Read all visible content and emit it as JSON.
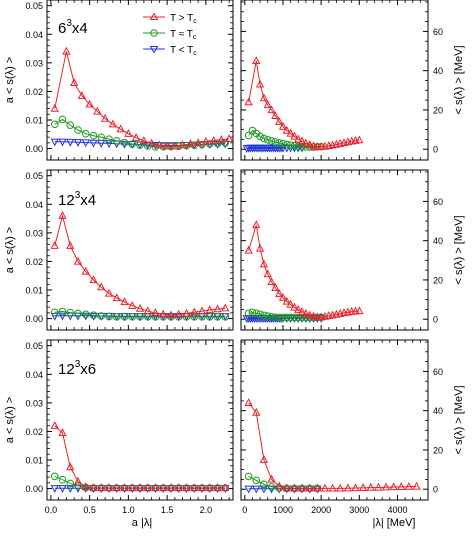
{
  "colors": {
    "above": "#e8222b",
    "near": "#1f9a1f",
    "below": "#2033d8",
    "frame": "#000000"
  },
  "legend": {
    "above": "T > T",
    "near": "T ≈ T",
    "below": "T < T",
    "sub": "c",
    "placement": "top-right of top-left panel"
  },
  "x_axis_left": {
    "label": "a |λ|",
    "ticks": [
      "0.0",
      "0.5",
      "1.0",
      "1.5",
      "2.0"
    ]
  },
  "x_axis_right": {
    "label": "|λ|  [MeV]",
    "ticks": [
      "0",
      "1000",
      "2000",
      "3000",
      "4000"
    ]
  },
  "y_axis_left": {
    "label": "a < s(λ) >",
    "ticks": [
      "0.00",
      "0.01",
      "0.02",
      "0.03",
      "0.04",
      "0.05"
    ]
  },
  "y_axis_right": {
    "label": "< s(λ) >  [MeV]",
    "ticks": [
      "0",
      "20",
      "40",
      "60"
    ]
  },
  "chart_data": [
    {
      "type": "line",
      "lattice_base": "6",
      "lattice_exp": "3",
      "lattice_rest": "x4",
      "xlabel": "a |λ|",
      "ylabel": "a < s(λ) >",
      "xlim": [
        -0.05,
        2.35
      ],
      "ylim": [
        -0.004,
        0.052
      ],
      "grid": false,
      "series": [
        {
          "name": "T > Tc",
          "marker": "triangle-up",
          "x": [
            0.05,
            0.2,
            0.3,
            0.4,
            0.5,
            0.6,
            0.7,
            0.8,
            0.9,
            1.0,
            1.1,
            1.2,
            1.3,
            1.4,
            1.5,
            1.6,
            1.7,
            1.8,
            1.9,
            2.0,
            2.1,
            2.2,
            2.3
          ],
          "y": [
            0.014,
            0.034,
            0.023,
            0.0185,
            0.0155,
            0.013,
            0.0105,
            0.0085,
            0.0068,
            0.0052,
            0.0038,
            0.0027,
            0.0018,
            0.0012,
            0.0008,
            0.0008,
            0.0012,
            0.0016,
            0.002,
            0.0024,
            0.0028,
            0.0031,
            0.0034
          ]
        },
        {
          "name": "T ≈ Tc",
          "marker": "circle",
          "x": [
            0.05,
            0.15,
            0.25,
            0.35,
            0.45,
            0.55,
            0.65,
            0.75,
            0.85,
            0.95,
            1.05,
            1.15,
            1.25,
            1.35,
            1.45,
            1.55,
            1.65,
            1.75,
            1.85,
            1.95,
            2.05,
            2.15,
            2.25
          ],
          "y": [
            0.0085,
            0.0102,
            0.0082,
            0.0065,
            0.0052,
            0.0045,
            0.004,
            0.0033,
            0.0027,
            0.0021,
            0.0016,
            0.0012,
            0.0009,
            0.0006,
            0.0006,
            0.0007,
            0.0008,
            0.001,
            0.0012,
            0.0014,
            0.0016,
            0.0018,
            0.002
          ]
        },
        {
          "name": "T < Tc",
          "marker": "triangle-down",
          "x": [
            0.05,
            0.15,
            0.25,
            0.35,
            0.45,
            0.55,
            0.65,
            0.75,
            0.85,
            0.95,
            1.05,
            1.15,
            1.25,
            1.35,
            1.45,
            1.55,
            1.65,
            1.75,
            1.85,
            1.95,
            2.05,
            2.15,
            2.25
          ],
          "y": [
            0.0024,
            0.0024,
            0.0023,
            0.0022,
            0.0021,
            0.002,
            0.0019,
            0.0018,
            0.0017,
            0.0016,
            0.0015,
            0.0014,
            0.0013,
            0.0012,
            0.0011,
            0.0011,
            0.0011,
            0.0012,
            0.0013,
            0.0014,
            0.0015,
            0.0016,
            0.0017
          ]
        }
      ]
    },
    {
      "type": "line",
      "xlabel": "|λ|  [MeV]",
      "ylabel": "< s(λ) >  [MeV]",
      "xlim": [
        -100,
        4800
      ],
      "ylim": [
        -5.5,
        76
      ],
      "grid": false,
      "series": [
        {
          "name": "T > Tc",
          "marker": "triangle-up",
          "x": [
            100,
            300,
            400,
            500,
            600,
            700,
            800,
            900,
            1000,
            1100,
            1200,
            1300,
            1400,
            1500,
            1600,
            1700,
            1800,
            1900,
            2000,
            2100,
            2200,
            2300,
            2400,
            2500,
            2600,
            2700,
            2800,
            2900,
            3000
          ],
          "y": [
            24,
            45,
            33,
            26,
            22.5,
            20,
            17,
            14,
            11.5,
            9.5,
            8,
            6.5,
            5,
            4,
            3,
            2.2,
            1.6,
            1.2,
            1.2,
            1.4,
            1.7,
            2,
            2.4,
            2.8,
            3.2,
            3.6,
            4,
            4.3,
            4.6
          ]
        },
        {
          "name": "T ≈ Tc",
          "marker": "circle",
          "x": [
            100,
            200,
            300,
            400,
            500,
            600,
            700,
            800,
            900,
            1000,
            1100,
            1200,
            1300,
            1400,
            1500,
            1600,
            1700,
            1800,
            1900,
            2000
          ],
          "y": [
            7,
            9.5,
            8,
            6.5,
            5.5,
            4.8,
            4.2,
            3.7,
            3.2,
            2.8,
            2.4,
            2.1,
            1.8,
            1.5,
            1.3,
            1.2,
            1.1,
            1.1,
            1.2,
            1.3
          ]
        },
        {
          "name": "T < Tc",
          "marker": "triangle-down",
          "x": [
            50,
            100,
            150,
            200,
            250,
            300,
            350,
            400,
            450,
            500,
            550,
            600,
            650,
            700,
            750,
            800,
            850,
            900,
            950,
            1000,
            1100,
            1200,
            1300,
            1400,
            1500
          ],
          "y": [
            0.5,
            0.6,
            0.7,
            0.7,
            0.7,
            0.7,
            0.7,
            0.7,
            0.7,
            0.7,
            0.7,
            0.7,
            0.7,
            0.7,
            0.7,
            0.7,
            0.7,
            0.7,
            0.7,
            0.7,
            0.7,
            0.7,
            0.7,
            0.7,
            0.7
          ]
        }
      ]
    },
    {
      "type": "line",
      "lattice_base": "12",
      "lattice_exp": "3",
      "lattice_rest": "x4",
      "xlabel": "a |λ|",
      "ylabel": "a < s(λ) >",
      "xlim": [
        -0.05,
        2.35
      ],
      "ylim": [
        -0.004,
        0.052
      ],
      "grid": false,
      "series": [
        {
          "name": "T > Tc",
          "marker": "triangle-up",
          "x": [
            0.05,
            0.15,
            0.25,
            0.35,
            0.45,
            0.55,
            0.65,
            0.75,
            0.85,
            0.95,
            1.05,
            1.15,
            1.25,
            1.35,
            1.45,
            1.55,
            1.65,
            1.75,
            1.85,
            1.95,
            2.05,
            2.15,
            2.25
          ],
          "y": [
            0.0255,
            0.036,
            0.0255,
            0.02,
            0.0165,
            0.0135,
            0.011,
            0.0088,
            0.0072,
            0.0058,
            0.0045,
            0.0035,
            0.0026,
            0.002,
            0.0015,
            0.0012,
            0.0014,
            0.0018,
            0.0022,
            0.0026,
            0.003,
            0.0033,
            0.0036
          ]
        },
        {
          "name": "T ≈ Tc",
          "marker": "circle",
          "x": [
            0.05,
            0.15,
            0.25,
            0.35,
            0.45,
            0.55,
            0.65,
            0.75,
            0.85,
            0.95,
            1.05,
            1.15,
            1.25,
            1.35,
            1.45,
            1.55,
            1.65,
            1.75,
            1.85,
            1.95,
            2.05,
            2.15,
            2.25
          ],
          "y": [
            0.0022,
            0.0025,
            0.0021,
            0.0018,
            0.0015,
            0.0012,
            0.0009,
            0.0007,
            0.0006,
            0.0006,
            0.0006,
            0.0006,
            0.0006,
            0.0006,
            0.0006,
            0.0006,
            0.0006,
            0.0006,
            0.0006,
            0.0006,
            0.0006,
            0.0006,
            0.0006
          ]
        },
        {
          "name": "T < Tc",
          "marker": "triangle-down",
          "x": [
            0.05,
            0.15,
            0.25,
            0.35,
            0.45,
            0.55,
            0.65,
            0.75,
            0.85,
            0.95,
            1.05,
            1.15,
            1.25,
            1.35,
            1.45,
            1.55,
            1.65,
            1.75,
            1.85,
            1.95,
            2.05,
            2.15,
            2.25
          ],
          "y": [
            0.0009,
            0.001,
            0.001,
            0.001,
            0.001,
            0.0009,
            0.0009,
            0.0009,
            0.0008,
            0.0008,
            0.0008,
            0.0008,
            0.0008,
            0.0008,
            0.0008,
            0.0008,
            0.0008,
            0.0008,
            0.0008,
            0.0008,
            0.0008,
            0.0008,
            0.0008
          ]
        }
      ]
    },
    {
      "type": "line",
      "xlabel": "|λ|  [MeV]",
      "ylabel": "< s(λ) >  [MeV]",
      "xlim": [
        -100,
        4800
      ],
      "ylim": [
        -5.5,
        76
      ],
      "grid": false,
      "series": [
        {
          "name": "T > Tc",
          "marker": "triangle-up",
          "x": [
            100,
            300,
            400,
            500,
            600,
            700,
            800,
            900,
            1000,
            1100,
            1200,
            1300,
            1400,
            1500,
            1600,
            1700,
            1800,
            1900,
            2000,
            2100,
            2200,
            2300,
            2400,
            2500,
            2600,
            2700,
            2800,
            2900,
            3000
          ],
          "y": [
            35,
            48,
            36,
            28,
            23,
            19,
            16,
            13,
            11,
            9,
            7.5,
            6,
            4.8,
            3.8,
            2.8,
            2,
            1.4,
            1,
            1,
            1.3,
            1.7,
            2,
            2.4,
            2.8,
            3.2,
            3.5,
            3.8,
            4,
            4.2
          ]
        },
        {
          "name": "T ≈ Tc",
          "marker": "circle",
          "x": [
            100,
            200,
            300,
            400,
            500,
            600,
            700,
            800,
            900,
            1000,
            1100,
            1200,
            1300,
            1400,
            1500,
            1600,
            1700,
            1800,
            1900,
            2000
          ],
          "y": [
            3,
            3.5,
            3,
            2.5,
            2,
            1.6,
            1.2,
            1,
            0.9,
            0.9,
            0.9,
            0.9,
            0.9,
            0.9,
            0.9,
            0.9,
            0.9,
            0.9,
            0.9,
            0.9
          ]
        },
        {
          "name": "T < Tc",
          "marker": "triangle-down",
          "x": [
            50,
            100,
            150,
            200,
            250,
            300,
            350,
            400,
            450,
            500,
            550,
            600,
            650,
            700,
            750,
            800,
            850,
            900,
            950,
            1000,
            1100,
            1200,
            1300,
            1400,
            1500,
            1600,
            1700,
            1800,
            1900,
            2000
          ],
          "y": [
            0.4,
            0.5,
            0.5,
            0.5,
            0.5,
            0.5,
            0.5,
            0.5,
            0.5,
            0.5,
            0.5,
            0.5,
            0.5,
            0.5,
            0.5,
            0.5,
            0.5,
            0.5,
            0.5,
            0.5,
            0.5,
            0.5,
            0.5,
            0.5,
            0.5,
            0.5,
            0.5,
            0.5,
            0.5,
            0.5
          ]
        }
      ]
    },
    {
      "type": "line",
      "lattice_base": "12",
      "lattice_exp": "3",
      "lattice_rest": "x6",
      "xlabel": "a |λ|",
      "ylabel": "a < s(λ) >",
      "xlim": [
        -0.05,
        2.35
      ],
      "ylim": [
        -0.004,
        0.052
      ],
      "grid": false,
      "series": [
        {
          "name": "T > Tc",
          "marker": "triangle-up",
          "x": [
            0.05,
            0.15,
            0.25,
            0.35,
            0.45,
            0.55,
            0.65,
            0.75,
            0.85,
            0.95,
            1.05,
            1.15,
            1.25,
            1.35,
            1.45,
            1.55,
            1.65,
            1.75,
            1.85,
            1.95,
            2.05,
            2.15,
            2.25
          ],
          "y": [
            0.022,
            0.0195,
            0.0075,
            0.0025,
            0.0006,
            0.0002,
            0.0002,
            0.0002,
            0.0002,
            0.0002,
            0.0002,
            0.0002,
            0.0002,
            0.0002,
            0.0002,
            0.0002,
            0.0002,
            0.0002,
            0.0002,
            0.0002,
            0.0002,
            0.0002,
            0.0002
          ]
        },
        {
          "name": "T ≈ Tc",
          "marker": "circle",
          "x": [
            0.05,
            0.15,
            0.25,
            0.35,
            0.45,
            0.55,
            0.65,
            0.75,
            0.85,
            0.95,
            1.05,
            1.15,
            1.25,
            1.35,
            1.45,
            1.55,
            1.65,
            1.75,
            1.85,
            1.95,
            2.05,
            2.15,
            2.25
          ],
          "y": [
            0.0043,
            0.0031,
            0.0018,
            0.001,
            0.0004,
            0.0002,
            0.0002,
            0.0002,
            0.0002,
            0.0002,
            0.0002,
            0.0002,
            0.0002,
            0.0002,
            0.0002,
            0.0002,
            0.0002,
            0.0002,
            0.0002,
            0.0002,
            0.0002,
            0.0002,
            0.0002
          ]
        },
        {
          "name": "T < Tc",
          "marker": "triangle-down",
          "x": [
            0.05,
            0.15,
            0.25,
            0.35,
            0.45,
            0.55,
            0.65,
            0.75,
            0.85,
            0.95,
            1.05,
            1.15,
            1.25,
            1.35,
            1.45,
            1.55,
            1.65,
            1.75,
            1.85,
            1.95,
            2.05,
            2.15,
            2.25
          ],
          "y": [
            0.0001,
            0.0001,
            0.0001,
            0.0001,
            0.0001,
            0.0001,
            0.0001,
            0.0001,
            0.0001,
            0.0001,
            0.0001,
            0.0001,
            0.0001,
            0.0001,
            0.0001,
            0.0001,
            0.0001,
            0.0001,
            0.0001,
            0.0001,
            0.0001,
            0.0001,
            0.0001
          ]
        }
      ]
    },
    {
      "type": "line",
      "xlabel": "|λ|  [MeV]",
      "ylabel": "< s(λ) >  [MeV]",
      "xlim": [
        -100,
        4800
      ],
      "ylim": [
        -5.5,
        76
      ],
      "grid": false,
      "series": [
        {
          "name": "T > Tc",
          "marker": "triangle-up",
          "x": [
            100,
            300,
            500,
            700,
            900,
            1100,
            1300,
            1500,
            1700,
            1900,
            2100,
            2300,
            2500,
            2700,
            2900,
            3100,
            3300,
            3500,
            3700,
            3900,
            4100,
            4300,
            4500
          ],
          "y": [
            44,
            39,
            15,
            5,
            1.5,
            0.6,
            0.4,
            0.4,
            0.4,
            0.4,
            0.4,
            0.4,
            0.4,
            0.5,
            0.6,
            0.7,
            0.8,
            0.9,
            1,
            1.1,
            1.2,
            1.3,
            1.4
          ]
        },
        {
          "name": "T ≈ Tc",
          "marker": "circle",
          "x": [
            100,
            300,
            500,
            700,
            900,
            1100,
            1300,
            1500,
            1700,
            1900
          ],
          "y": [
            6.5,
            4.5,
            2.5,
            1.2,
            0.6,
            0.4,
            0.4,
            0.4,
            0.4,
            0.4
          ]
        },
        {
          "name": "T < Tc",
          "marker": "triangle-down",
          "x": [
            100,
            300,
            500,
            700,
            900,
            1100,
            1300,
            1500,
            1700,
            1900
          ],
          "y": [
            0.2,
            0.2,
            0.2,
            0.2,
            0.2,
            0.2,
            0.2,
            0.2,
            0.2,
            0.2
          ]
        }
      ]
    }
  ]
}
